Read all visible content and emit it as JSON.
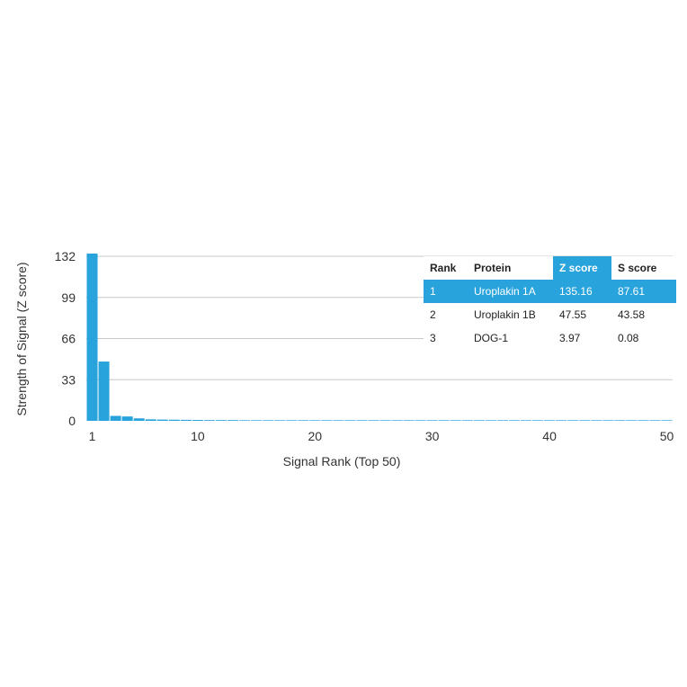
{
  "chart_data": {
    "type": "bar",
    "xlabel": "Signal Rank (Top 50)",
    "ylabel": "Strength of Signal (Z score)",
    "ylim": [
      0,
      132
    ],
    "yticks": [
      0,
      33,
      66,
      99,
      132
    ],
    "xticks": [
      1,
      10,
      20,
      30,
      40,
      50
    ],
    "grid": true,
    "bar_color": "#29a3dc",
    "x": [
      1,
      2,
      3,
      4,
      5,
      6,
      7,
      8,
      9,
      10,
      11,
      12,
      13,
      14,
      15,
      16,
      17,
      18,
      19,
      20,
      21,
      22,
      23,
      24,
      25,
      26,
      27,
      28,
      29,
      30,
      31,
      32,
      33,
      34,
      35,
      36,
      37,
      38,
      39,
      40,
      41,
      42,
      43,
      44,
      45,
      46,
      47,
      48,
      49,
      50
    ],
    "values": [
      135.16,
      47.55,
      3.97,
      3.5,
      2.0,
      1.2,
      1.0,
      0.9,
      0.8,
      0.7,
      0.6,
      0.6,
      0.6,
      0.5,
      0.5,
      0.5,
      0.5,
      0.5,
      0.5,
      0.5,
      0.5,
      0.5,
      0.5,
      0.5,
      0.5,
      0.5,
      0.5,
      0.5,
      0.5,
      0.5,
      0.5,
      0.5,
      0.5,
      0.5,
      0.5,
      0.5,
      0.5,
      0.5,
      0.5,
      0.5,
      0.5,
      0.5,
      0.5,
      0.5,
      0.5,
      0.5,
      0.5,
      0.5,
      0.5,
      0.5
    ]
  },
  "table": {
    "headers": [
      "Rank",
      "Protein",
      "Z score",
      "S score"
    ],
    "rows": [
      [
        "1",
        "Uroplakin 1A",
        "135.16",
        "87.61"
      ],
      [
        "2",
        "Uroplakin 1B",
        "47.55",
        "43.58"
      ],
      [
        "3",
        "DOG-1",
        "3.97",
        "0.08"
      ]
    ],
    "highlight_color": "#29a3dc"
  }
}
